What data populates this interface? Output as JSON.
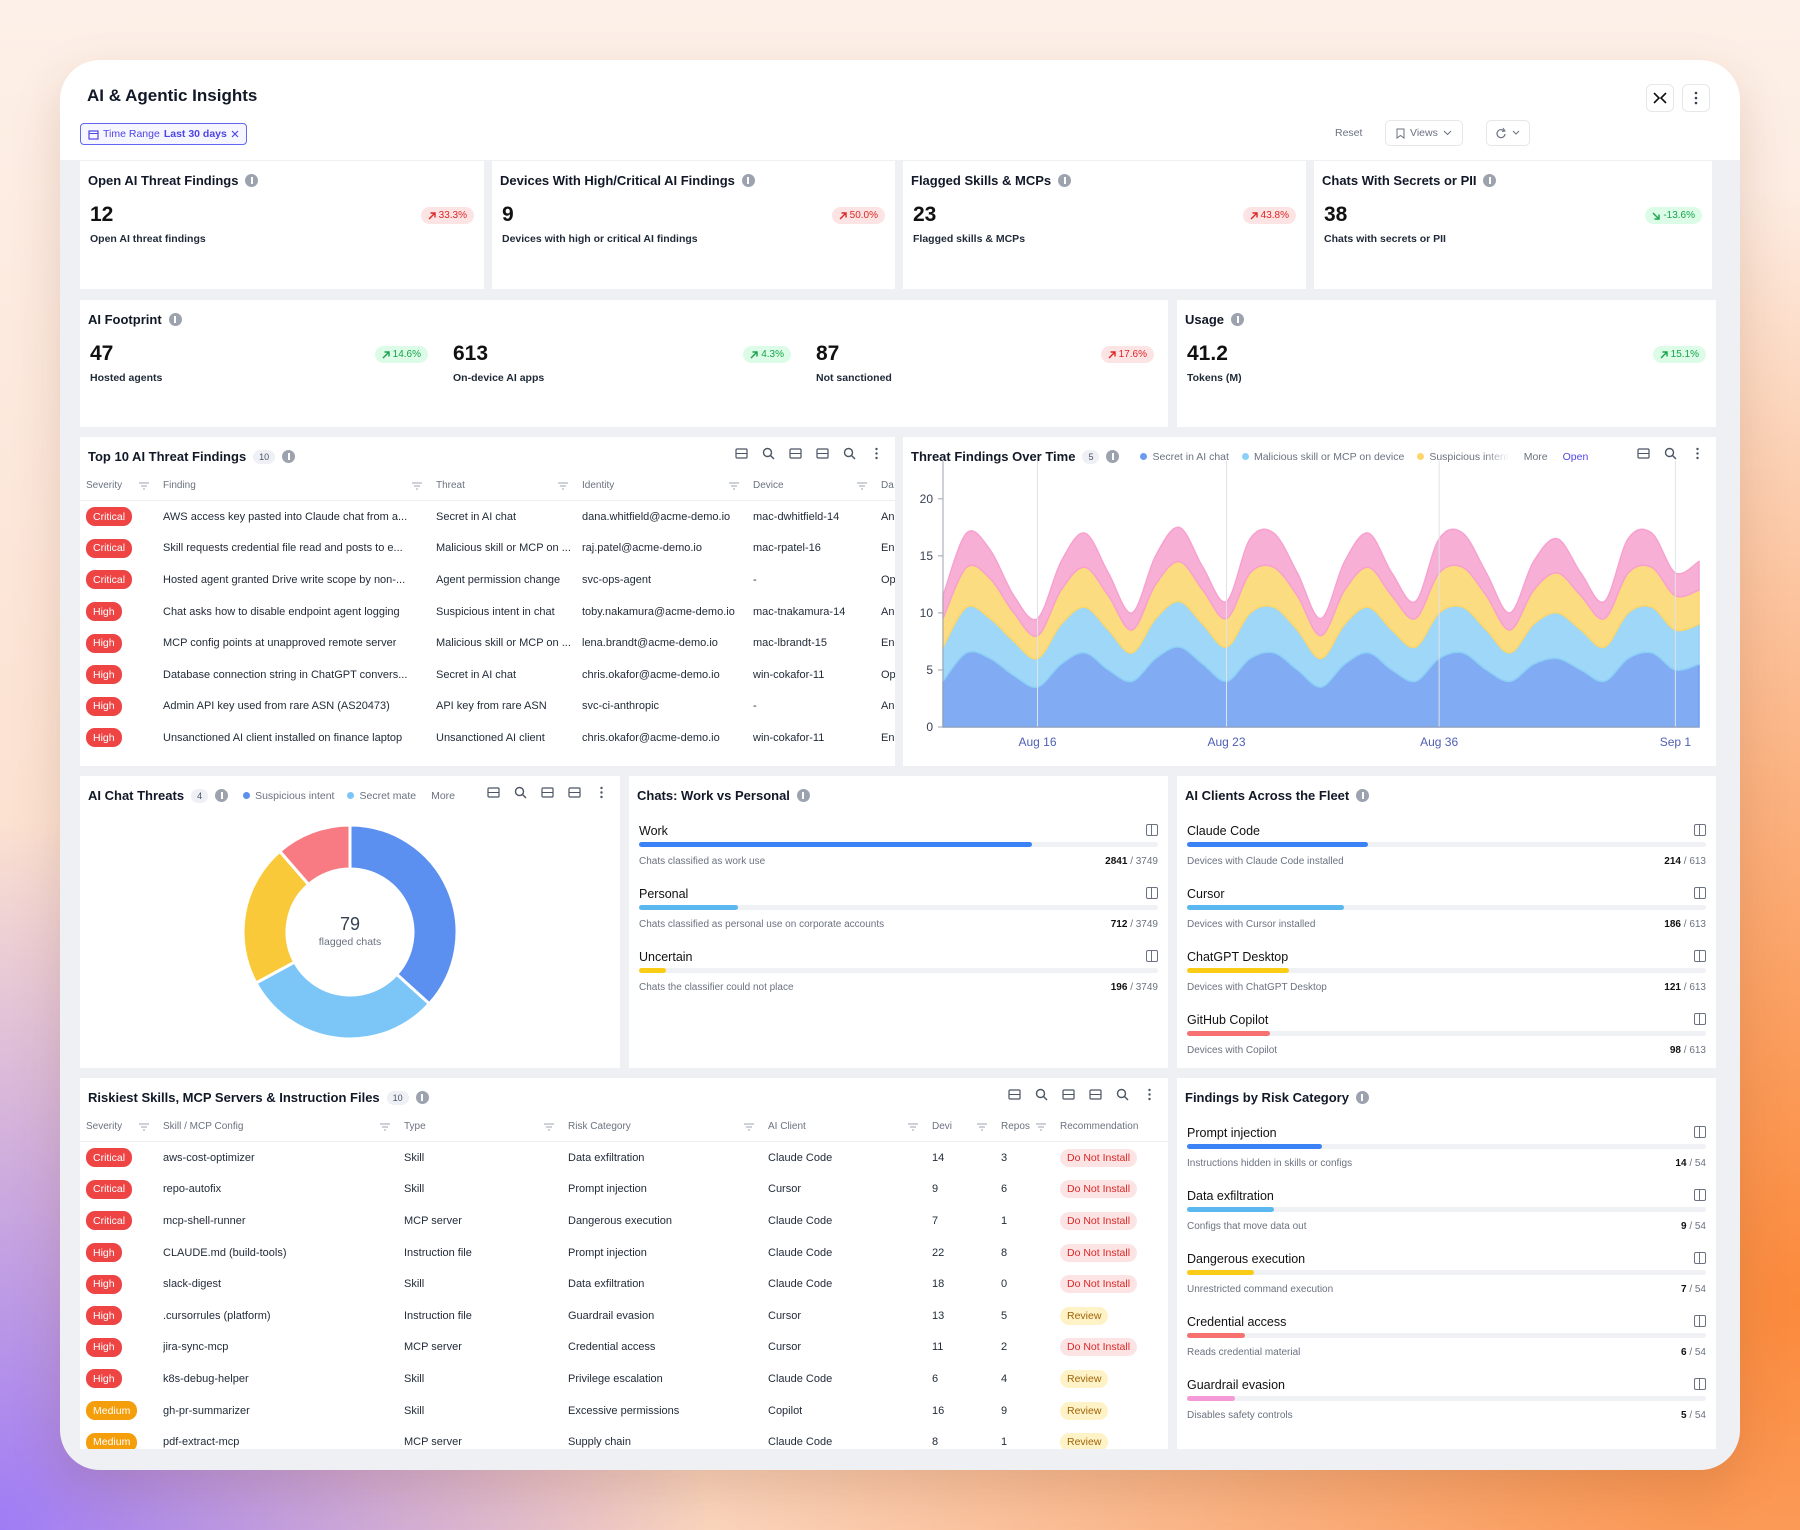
{
  "header": {
    "title": "AI & Agentic Insights",
    "filter_label": "Time Range",
    "filter_value": "Last 30 days",
    "reset": "Reset",
    "views": "Views"
  },
  "kpis": [
    {
      "title": "Open AI Threat Findings",
      "value": 12,
      "change": "33.3%",
      "direction": "up",
      "tone": "bad",
      "caption": "Open AI threat findings"
    },
    {
      "title": "Devices With High/Critical AI Findings",
      "value": 9,
      "change": "50.0%",
      "direction": "up",
      "tone": "bad",
      "caption": "Devices with high or critical AI findings"
    },
    {
      "title": "Flagged Skills & MCPs",
      "value": 23,
      "change": "43.8%",
      "direction": "up",
      "tone": "bad",
      "caption": "Flagged skills & MCPs"
    },
    {
      "title": "Chats With Secrets or PII",
      "value": 38,
      "change": "-13.6%",
      "direction": "down",
      "tone": "good",
      "caption": "Chats with secrets or PII"
    }
  ],
  "footprint": {
    "title": "AI Footprint",
    "items": [
      {
        "value": 47,
        "change": "14.6%",
        "direction": "up",
        "tone": "good",
        "caption": "Hosted agents"
      },
      {
        "value": 613,
        "change": "4.3%",
        "direction": "up",
        "tone": "good",
        "caption": "On-device AI apps"
      },
      {
        "value": 87,
        "change": "17.6%",
        "direction": "up",
        "tone": "bad",
        "caption": "Not sanctioned"
      }
    ]
  },
  "usage": {
    "title": "Usage",
    "items": [
      {
        "value": 41.2,
        "change": "15.1%",
        "direction": "up",
        "tone": "good",
        "caption": "Tokens (M)"
      }
    ]
  },
  "top_findings": {
    "title": "Top 10 AI Threat Findings",
    "count": 10,
    "columns": [
      "Severity",
      "Finding",
      "Threat",
      "Identity",
      "Device",
      "Da"
    ],
    "rows": [
      [
        "Critical",
        "AWS access key pasted into Claude chat from a...",
        "Secret in AI chat",
        "dana.whitfield@acme-demo.io",
        "mac-dwhitfield-14",
        "An"
      ],
      [
        "Critical",
        "Skill requests credential file read and posts to e...",
        "Malicious skill or MCP on ...",
        "raj.patel@acme-demo.io",
        "mac-rpatel-16",
        "En"
      ],
      [
        "Critical",
        "Hosted agent granted Drive write scope by non-...",
        "Agent permission change",
        "svc-ops-agent",
        "-",
        "Op"
      ],
      [
        "High",
        "Chat asks how to disable endpoint agent logging",
        "Suspicious intent in chat",
        "toby.nakamura@acme-demo.io",
        "mac-tnakamura-14",
        "An"
      ],
      [
        "High",
        "MCP config points at unapproved remote server",
        "Malicious skill or MCP on ...",
        "lena.brandt@acme-demo.io",
        "mac-lbrandt-15",
        "En"
      ],
      [
        "High",
        "Database connection string in ChatGPT convers...",
        "Secret in AI chat",
        "chris.okafor@acme-demo.io",
        "win-cokafor-11",
        "Op"
      ],
      [
        "High",
        "Admin API key used from rare ASN (AS20473)",
        "API key from rare ASN",
        "svc-ci-anthropic",
        "-",
        "An"
      ],
      [
        "High",
        "Unsanctioned AI client installed on finance laptop",
        "Unsanctioned AI client",
        "chris.okafor@acme-demo.io",
        "win-cokafor-11",
        "En"
      ]
    ]
  },
  "chart_data": [
    {
      "type": "area",
      "stacked": true,
      "title": "Threat Findings Over Time",
      "count": 5,
      "more": "More",
      "open": "Open",
      "categories": [
        null,
        null,
        null,
        null,
        "Aug 16",
        null,
        null,
        null,
        null,
        null,
        null,
        null,
        "Aug 23",
        null,
        null,
        null,
        null,
        null,
        null,
        null,
        null,
        "Aug 36",
        null,
        null,
        null,
        null,
        null,
        null,
        null,
        null,
        null,
        "Sep 1",
        null
      ],
      "series": [
        {
          "name": "Secret in AI chat",
          "color": "#6b9cf0",
          "values": [
            4,
            6.5,
            6,
            4.5,
            3.5,
            5.5,
            6.5,
            5,
            4,
            6,
            7,
            5.5,
            4,
            6,
            6.5,
            5,
            3.5,
            5.5,
            6.5,
            5,
            4,
            6,
            6.5,
            5,
            4,
            5.5,
            6,
            5,
            4,
            6,
            6.5,
            5,
            5.5
          ]
        },
        {
          "name": "Malicious skill or MCP on device",
          "color": "#8dd0f7",
          "values": [
            3,
            4,
            3.5,
            3,
            2.5,
            3.5,
            4,
            3.5,
            2.5,
            3.5,
            4,
            3.5,
            3,
            4,
            4,
            3.5,
            2.5,
            3.5,
            4,
            3.5,
            3,
            4,
            4,
            3.5,
            2.5,
            3.5,
            4,
            3.5,
            3,
            4,
            4,
            3.5,
            3.5
          ]
        },
        {
          "name": "Suspicious intent",
          "color": "#fcd66b",
          "values": [
            2.5,
            3.5,
            3.5,
            2.5,
            2,
            3,
            3.5,
            3,
            2,
            3,
            3.5,
            3,
            2.5,
            3.5,
            3.5,
            3,
            2,
            3,
            3.5,
            3,
            2.5,
            3.5,
            3.5,
            3,
            2,
            3,
            3.5,
            3,
            2.5,
            3.5,
            3.5,
            3,
            3
          ]
        },
        {
          "color": "#f7a1cf",
          "values": [
            2,
            3,
            2.5,
            1.5,
            1.5,
            2.5,
            3,
            2,
            1.5,
            2.5,
            3,
            2,
            1.5,
            3,
            3,
            2,
            1.5,
            2.5,
            3,
            2,
            1.5,
            3,
            3,
            2,
            1.5,
            2.5,
            3,
            2,
            1.5,
            3,
            3,
            2,
            2.5
          ]
        }
      ],
      "ylim": [
        0,
        22
      ],
      "yticks": [
        0,
        5,
        10,
        15,
        20
      ],
      "grid": "x"
    },
    {
      "type": "pie",
      "donut": true,
      "title": "AI Chat Threats",
      "count": 4,
      "more": "More",
      "categories": [
        "Suspicious intent",
        "Secret mate",
        null,
        null
      ],
      "values": [
        29,
        24,
        17,
        9
      ],
      "colors": [
        "#5b8ff0",
        "#7cc6f7",
        "#f9c93a",
        "#f87b83"
      ],
      "center_value": 79,
      "center_label": "flagged chats"
    }
  ],
  "chats_work": {
    "title": "Chats: Work vs Personal",
    "items": [
      {
        "label": "Work",
        "caption": "Chats classified as work use",
        "value": 2841,
        "total": 3749,
        "color": "#3b82f6"
      },
      {
        "label": "Personal",
        "caption": "Chats classified as personal use on corporate accounts",
        "value": 712,
        "total": 3749,
        "color": "#5bb7f0"
      },
      {
        "label": "Uncertain",
        "caption": "Chats the classifier could not place",
        "value": 196,
        "total": 3749,
        "color": "#facc15"
      }
    ]
  },
  "clients": {
    "title": "AI Clients Across the Fleet",
    "items": [
      {
        "label": "Claude Code",
        "caption": "Devices with Claude Code installed",
        "value": 214,
        "total": 613,
        "color": "#3b82f6"
      },
      {
        "label": "Cursor",
        "caption": "Devices with Cursor installed",
        "value": 186,
        "total": 613,
        "color": "#5bb7f0"
      },
      {
        "label": "ChatGPT Desktop",
        "caption": "Devices with ChatGPT Desktop",
        "value": 121,
        "total": 613,
        "color": "#facc15"
      },
      {
        "label": "GitHub Copilot",
        "caption": "Devices with Copilot",
        "value": 98,
        "total": 613,
        "color": "#f87171"
      }
    ]
  },
  "riskiest": {
    "title": "Riskiest Skills, MCP Servers & Instruction Files",
    "count": 10,
    "columns": [
      "Severity",
      "Skill / MCP Config",
      "Type",
      "Risk Category",
      "AI Client",
      "Devi",
      "Repos",
      "Recommendation"
    ],
    "rows": [
      [
        "Critical",
        "aws-cost-optimizer",
        "Skill",
        "Data exfiltration",
        "Claude Code",
        14,
        3,
        "Do Not Install"
      ],
      [
        "Critical",
        "repo-autofix",
        "Skill",
        "Prompt injection",
        "Cursor",
        9,
        6,
        "Do Not Install"
      ],
      [
        "Critical",
        "mcp-shell-runner",
        "MCP server",
        "Dangerous execution",
        "Claude Code",
        7,
        1,
        "Do Not Install"
      ],
      [
        "High",
        "CLAUDE.md (build-tools)",
        "Instruction file",
        "Prompt injection",
        "Claude Code",
        22,
        8,
        "Do Not Install"
      ],
      [
        "High",
        "slack-digest",
        "Skill",
        "Data exfiltration",
        "Claude Code",
        18,
        0,
        "Do Not Install"
      ],
      [
        "High",
        ".cursorrules (platform)",
        "Instruction file",
        "Guardrail evasion",
        "Cursor",
        13,
        5,
        "Review"
      ],
      [
        "High",
        "jira-sync-mcp",
        "MCP server",
        "Credential access",
        "Cursor",
        11,
        2,
        "Do Not Install"
      ],
      [
        "High",
        "k8s-debug-helper",
        "Skill",
        "Privilege escalation",
        "Claude Code",
        6,
        4,
        "Review"
      ],
      [
        "Medium",
        "gh-pr-summarizer",
        "Skill",
        "Excessive permissions",
        "Copilot",
        16,
        9,
        "Review"
      ],
      [
        "Medium",
        "pdf-extract-mcp",
        "MCP server",
        "Supply chain",
        "Claude Code",
        8,
        1,
        "Review"
      ]
    ]
  },
  "risk_categories": {
    "title": "Findings by Risk Category",
    "items": [
      {
        "label": "Prompt injection",
        "caption": "Instructions hidden in skills or configs",
        "value": 14,
        "total": 54,
        "color": "#3b82f6"
      },
      {
        "label": "Data exfiltration",
        "caption": "Configs that move data out",
        "value": 9,
        "total": 54,
        "color": "#5bb7f0"
      },
      {
        "label": "Dangerous execution",
        "caption": "Unrestricted command execution",
        "value": 7,
        "total": 54,
        "color": "#facc15"
      },
      {
        "label": "Credential access",
        "caption": "Reads credential material",
        "value": 6,
        "total": 54,
        "color": "#f87171"
      },
      {
        "label": "Guardrail evasion",
        "caption": "Disables safety controls",
        "value": 5,
        "total": 54,
        "color": "#f49ad8"
      }
    ]
  }
}
